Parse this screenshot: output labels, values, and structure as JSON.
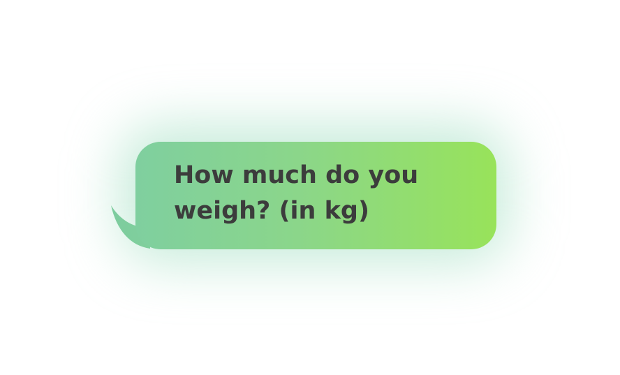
{
  "message": {
    "text": "How much do you weigh? (in kg)"
  },
  "colors": {
    "gradient_start": "#7fcf9f",
    "gradient_end": "#98e35a",
    "text": "#3c3c3c",
    "glow": "#9bddbe"
  }
}
